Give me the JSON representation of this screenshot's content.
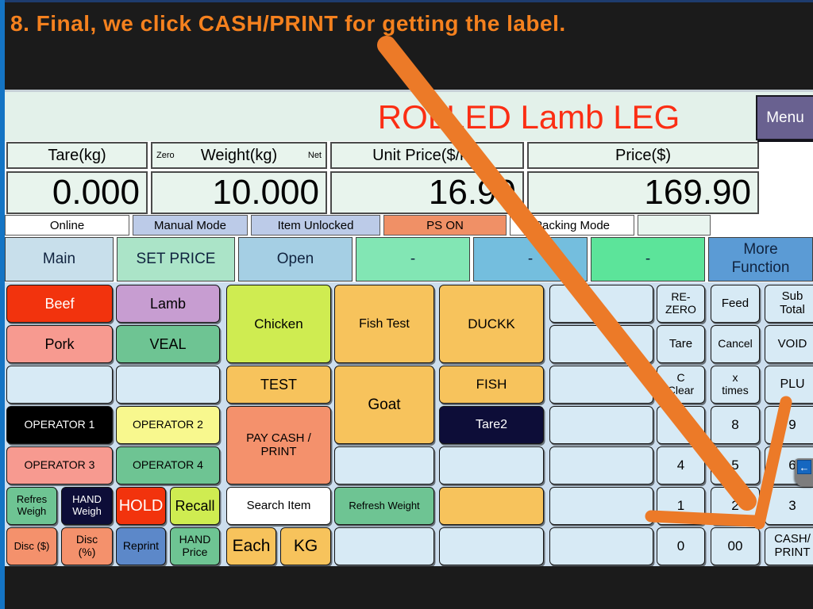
{
  "annotation": {
    "step_text": "8. Final, we click CASH/PRINT for getting the label.",
    "text_color": "#f5811e",
    "arrow_color": "#ec7a28"
  },
  "header": {
    "title": "ROLLED Lamb LEG",
    "title_color": "#fb2e14",
    "menu_label": "Menu"
  },
  "display": {
    "columns": [
      {
        "label": "Tare(kg)",
        "value": "0.000"
      },
      {
        "label": "Weight(kg)",
        "value": "10.000",
        "left_tag": "Zero",
        "right_tag": "Net"
      },
      {
        "label": "Unit Price($/kg)",
        "value": "16.99"
      },
      {
        "label": "Price($)",
        "value": "169.90"
      }
    ]
  },
  "status_bar": [
    {
      "label": "Online",
      "bg": "#ffffff"
    },
    {
      "label": "Manual Mode",
      "bg": "#bccbe8"
    },
    {
      "label": "Item Unlocked",
      "bg": "#bccbe8"
    },
    {
      "label": "PS ON",
      "bg": "#f09066"
    },
    {
      "label": "Packing Mode",
      "bg": "#ffffff"
    },
    {
      "label": "",
      "bg": "#e9f5ef"
    }
  ],
  "tabs": [
    {
      "label": "Main",
      "bg": "#c8dfeb"
    },
    {
      "label": "SET PRICE",
      "bg": "#abe4c8"
    },
    {
      "label": "Open",
      "bg": "#a5cfe4"
    },
    {
      "label": "-",
      "bg": "#82e6b4"
    },
    {
      "label": "-",
      "bg": "#74bede"
    },
    {
      "label": "-",
      "bg": "#5ce49a"
    },
    {
      "label": "More\nFunction",
      "bg": "#5b9bd5"
    }
  ],
  "grid": {
    "default_bg": "#d7eaf5",
    "buttons": [
      {
        "id": "beef",
        "label": "Beef",
        "row": 1,
        "col": 1,
        "bg": "#f2330d",
        "fg": "#ffffff",
        "fs": 18
      },
      {
        "id": "lamb",
        "label": "Lamb",
        "row": 1,
        "col": 2,
        "bg": "#c79dd1",
        "fs": 18
      },
      {
        "id": "chicken",
        "label": "Chicken",
        "row": 1,
        "col": 3,
        "rs": 2,
        "bg": "#cfec51",
        "fs": 17
      },
      {
        "id": "fish-test",
        "label": "Fish Test",
        "row": 1,
        "col": 4,
        "rs": 2,
        "bg": "#f7c35c",
        "fs": 16
      },
      {
        "id": "duckk",
        "label": "DUCKK",
        "row": 1,
        "col": 5,
        "rs": 2,
        "bg": "#f7c35c",
        "fs": 17
      },
      {
        "id": "empty-r1c6",
        "label": "",
        "row": 1,
        "col": 6
      },
      {
        "id": "re-zero",
        "label": "RE-\nZERO",
        "row": 1,
        "col": 7,
        "fs": 14
      },
      {
        "id": "feed",
        "label": "Feed",
        "row": 1,
        "col": 8,
        "fs": 15
      },
      {
        "id": "sub-total",
        "label": "Sub\nTotal",
        "row": 1,
        "col": 9,
        "fs": 15
      },
      {
        "id": "pork",
        "label": "Pork",
        "row": 2,
        "col": 1,
        "bg": "#f79a90",
        "fs": 18
      },
      {
        "id": "veal",
        "label": "VEAL",
        "row": 2,
        "col": 2,
        "bg": "#6ec493",
        "fs": 18
      },
      {
        "id": "empty-r2c6",
        "label": "",
        "row": 2,
        "col": 6
      },
      {
        "id": "tare",
        "label": "Tare",
        "row": 2,
        "col": 7,
        "fs": 15
      },
      {
        "id": "cancel",
        "label": "Cancel",
        "row": 2,
        "col": 8,
        "fs": 14
      },
      {
        "id": "void",
        "label": "VOID",
        "row": 2,
        "col": 9,
        "fs": 15
      },
      {
        "id": "empty-r3c1",
        "label": "",
        "row": 3,
        "col": 1
      },
      {
        "id": "empty-r3c2",
        "label": "",
        "row": 3,
        "col": 2
      },
      {
        "id": "test",
        "label": "TEST",
        "row": 3,
        "col": 3,
        "bg": "#f7c35c",
        "fs": 18
      },
      {
        "id": "goat",
        "label": "Goat",
        "row": 3,
        "col": 4,
        "rs": 2,
        "bg": "#f7c35c",
        "fs": 19
      },
      {
        "id": "fish",
        "label": "FISH",
        "row": 3,
        "col": 5,
        "bg": "#f7c35c",
        "fs": 17
      },
      {
        "id": "empty-r3c6",
        "label": "",
        "row": 3,
        "col": 6
      },
      {
        "id": "c-clear",
        "label": "C\nClear",
        "row": 3,
        "col": 7,
        "fs": 14
      },
      {
        "id": "x-times",
        "label": "x\ntimes",
        "row": 3,
        "col": 8,
        "fs": 14
      },
      {
        "id": "plu",
        "label": "PLU",
        "row": 3,
        "col": 9,
        "fs": 16
      },
      {
        "id": "operator-1",
        "label": "OPERATOR 1",
        "row": 4,
        "col": 1,
        "bg": "#000000",
        "fg": "#ffffff",
        "fs": 14
      },
      {
        "id": "operator-2",
        "label": "OPERATOR 2",
        "row": 4,
        "col": 2,
        "bg": "#f8f88e",
        "fs": 14
      },
      {
        "id": "pay-cash-print",
        "label": "PAY CASH /\nPRINT",
        "row": 4,
        "col": 3,
        "rs": 2,
        "bg": "#f4916c",
        "fs": 15
      },
      {
        "id": "tare2",
        "label": "Tare2",
        "row": 4,
        "col": 5,
        "bg": "#0d0d38",
        "fg": "#ffffff",
        "fs": 16
      },
      {
        "id": "empty-r4c6",
        "label": "",
        "row": 4,
        "col": 6
      },
      {
        "id": "key-7",
        "label": "7",
        "row": 4,
        "col": 7,
        "fs": 17
      },
      {
        "id": "key-8",
        "label": "8",
        "row": 4,
        "col": 8,
        "fs": 17
      },
      {
        "id": "key-9",
        "label": "9",
        "row": 4,
        "col": 9,
        "fs": 17
      },
      {
        "id": "operator-3",
        "label": "OPERATOR 3",
        "row": 5,
        "col": 1,
        "bg": "#f79a90",
        "fs": 14
      },
      {
        "id": "operator-4",
        "label": "OPERATOR 4",
        "row": 5,
        "col": 2,
        "bg": "#6ec493",
        "fs": 14
      },
      {
        "id": "empty-r5c4",
        "label": "",
        "row": 5,
        "col": 4
      },
      {
        "id": "empty-r5c5",
        "label": "",
        "row": 5,
        "col": 5
      },
      {
        "id": "empty-r5c6",
        "label": "",
        "row": 5,
        "col": 6
      },
      {
        "id": "key-4",
        "label": "4",
        "row": 5,
        "col": 7,
        "fs": 17
      },
      {
        "id": "key-5",
        "label": "5",
        "row": 5,
        "col": 8,
        "fs": 17
      },
      {
        "id": "key-6",
        "label": "6",
        "row": 5,
        "col": 9,
        "fs": 17
      },
      {
        "id": "refresh-weigh",
        "label": "Refres\nWeigh",
        "row": 6,
        "col": 1,
        "half": "L",
        "bg": "#6ec493",
        "fs": 13
      },
      {
        "id": "hand-weigh",
        "label": "HAND\nWeigh",
        "row": 6,
        "col": 1,
        "half": "R",
        "bg": "#0d0d38",
        "fg": "#ffffff",
        "fs": 13
      },
      {
        "id": "hold",
        "label": "HOLD",
        "row": 6,
        "col": 2,
        "half": "L",
        "bg": "#f2330d",
        "fg": "#ffffff",
        "fs": 20
      },
      {
        "id": "recall",
        "label": "Recall",
        "row": 6,
        "col": 2,
        "half": "R",
        "bg": "#cfec51",
        "fs": 18
      },
      {
        "id": "search-item",
        "label": "Search Item",
        "row": 6,
        "col": 3,
        "bg": "#ffffff",
        "fs": 15
      },
      {
        "id": "refresh-weight",
        "label": "Refresh Weight",
        "row": 6,
        "col": 4,
        "bg": "#6ec493",
        "fs": 13
      },
      {
        "id": "empty-r6c5",
        "label": "",
        "row": 6,
        "col": 5,
        "bg": "#f7c35c"
      },
      {
        "id": "empty-r6c6",
        "label": "",
        "row": 6,
        "col": 6
      },
      {
        "id": "key-1",
        "label": "1",
        "row": 6,
        "col": 7,
        "fs": 17
      },
      {
        "id": "key-2",
        "label": "2",
        "row": 6,
        "col": 8,
        "fs": 17
      },
      {
        "id": "key-3",
        "label": "3",
        "row": 6,
        "col": 9,
        "fs": 17
      },
      {
        "id": "disc-dollar",
        "label": "Disc ($)",
        "row": 7,
        "col": 1,
        "half": "L",
        "bg": "#f4916c",
        "fs": 13
      },
      {
        "id": "disc-percent",
        "label": "Disc\n(%)",
        "row": 7,
        "col": 1,
        "half": "R",
        "bg": "#f4916c",
        "fs": 14
      },
      {
        "id": "reprint",
        "label": "Reprint",
        "row": 7,
        "col": 2,
        "half": "L",
        "bg": "#5c88c9",
        "fs": 14
      },
      {
        "id": "hand-price",
        "label": "HAND\nPrice",
        "row": 7,
        "col": 2,
        "half": "R",
        "bg": "#6ec493",
        "fs": 14
      },
      {
        "id": "each",
        "label": "Each",
        "row": 7,
        "col": 3,
        "half": "L",
        "bg": "#f7c35c",
        "fs": 21
      },
      {
        "id": "kg",
        "label": "KG",
        "row": 7,
        "col": 3,
        "half": "R",
        "bg": "#f7c35c",
        "fs": 21
      },
      {
        "id": "empty-r7c4",
        "label": "",
        "row": 7,
        "col": 4
      },
      {
        "id": "empty-r7c5",
        "label": "",
        "row": 7,
        "col": 5
      },
      {
        "id": "empty-r7c6",
        "label": "",
        "row": 7,
        "col": 6
      },
      {
        "id": "key-0",
        "label": "0",
        "row": 7,
        "col": 7,
        "fs": 17
      },
      {
        "id": "key-00",
        "label": "00",
        "row": 7,
        "col": 8,
        "fs": 17
      },
      {
        "id": "cash-print",
        "label": "CASH/\nPRINT",
        "row": 7,
        "col": 9,
        "fs": 15
      }
    ]
  },
  "edge_tab": {
    "glyph": "←"
  }
}
